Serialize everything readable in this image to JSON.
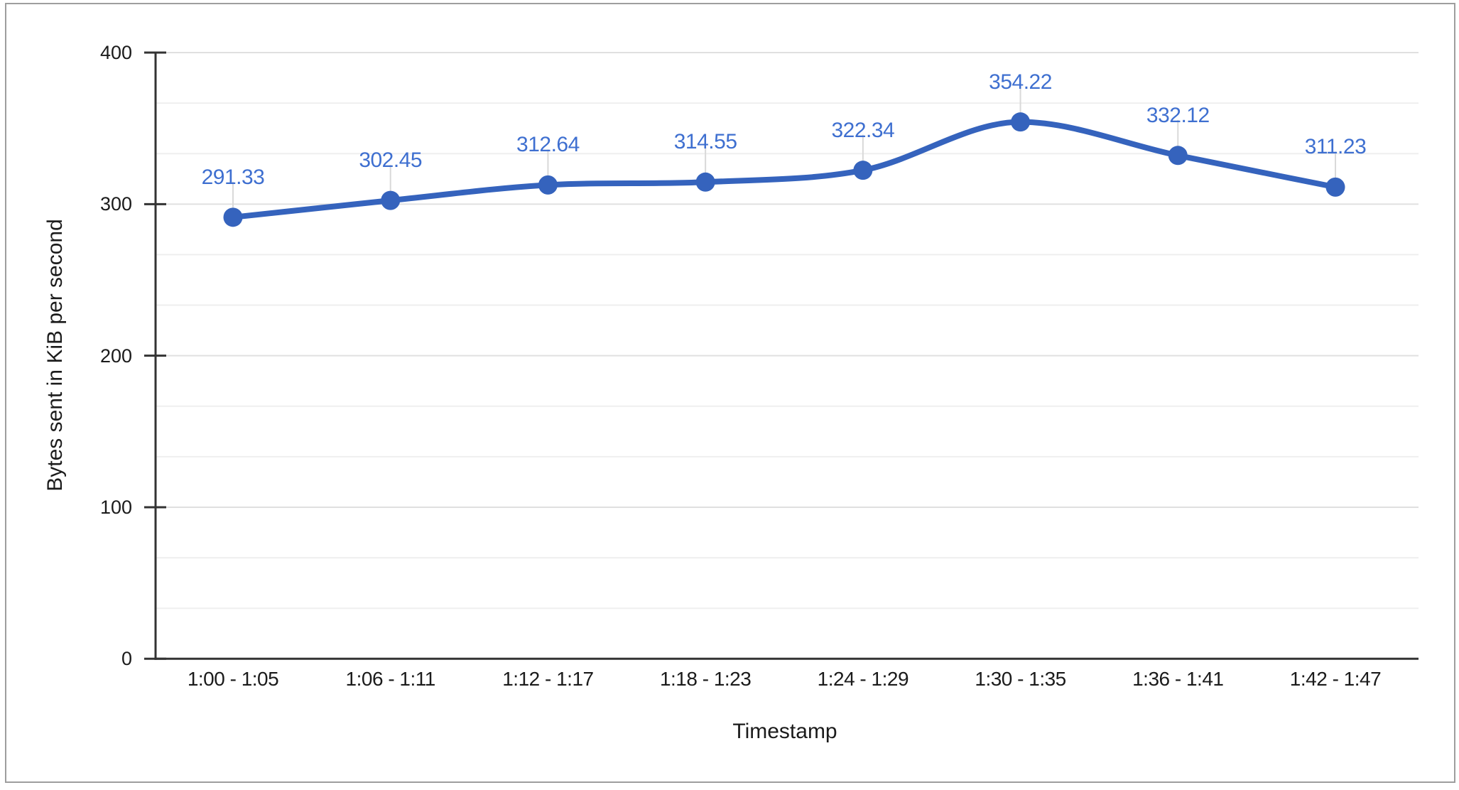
{
  "chart_data": {
    "type": "line",
    "smooth": true,
    "point_markers": true,
    "point_labels": true,
    "legend": "none",
    "grid": "on",
    "xlabel": "Timestamp",
    "ylabel": "Bytes sent in KiB per second",
    "categories": [
      "1:00 - 1:05",
      "1:06 - 1:11",
      "1:12 - 1:17",
      "1:18 - 1:23",
      "1:24 - 1:29",
      "1:30 - 1:35",
      "1:36 - 1:41",
      "1:42 - 1:47"
    ],
    "values": [
      291.33,
      302.45,
      312.64,
      314.55,
      322.34,
      354.22,
      332.12,
      311.23
    ],
    "y_ticks": [
      "0",
      "100",
      "200",
      "300",
      "400"
    ],
    "y_tick_values": [
      0,
      100,
      200,
      300,
      400
    ],
    "ylim": [
      0,
      400
    ],
    "minor_grid_divisions_per_major": 3,
    "colors": {
      "series": "#3563bd",
      "value_labels": "#3e6fd0",
      "axis_text": "#1b1b1b",
      "axis_line": "#333333",
      "major_gridline": "#e0e0e0",
      "minor_gridline": "#efefef",
      "leader_line": "#d9d9d9",
      "frame_border": "#9e9e9e",
      "background": "#ffffff"
    }
  }
}
